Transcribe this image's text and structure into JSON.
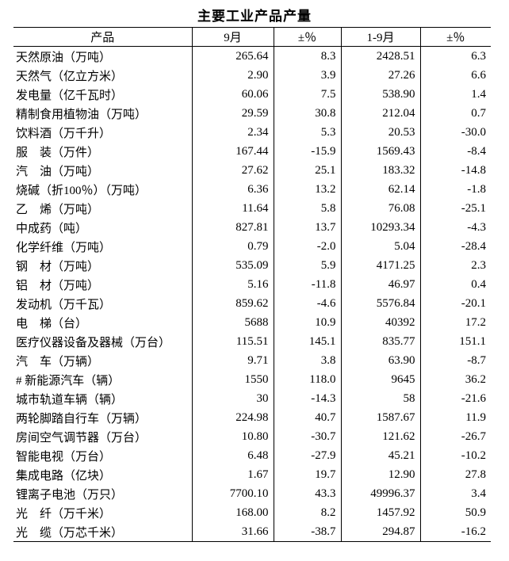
{
  "page": {
    "title": "主要工业产品产量"
  },
  "colors": {
    "text": "#000000",
    "border": "#000000",
    "background": "#ffffff"
  },
  "table": {
    "columns": {
      "product": "产品",
      "m9": "9月",
      "m9_pct": "±％",
      "ytd": "1-9月",
      "ytd_pct": "±％"
    },
    "rows": [
      {
        "product": "天然原油（万吨）",
        "m9": "265.64",
        "m9_pct": "8.3",
        "ytd": "2428.51",
        "ytd_pct": "6.3"
      },
      {
        "product": "天然气（亿立方米）",
        "m9": "2.90",
        "m9_pct": "3.9",
        "ytd": "27.26",
        "ytd_pct": "6.6"
      },
      {
        "product": "发电量（亿千瓦时）",
        "m9": "60.06",
        "m9_pct": "7.5",
        "ytd": "538.90",
        "ytd_pct": "1.4"
      },
      {
        "product": "精制食用植物油（万吨）",
        "m9": "29.59",
        "m9_pct": "30.8",
        "ytd": "212.04",
        "ytd_pct": "0.7"
      },
      {
        "product": "饮料酒（万千升）",
        "m9": "2.34",
        "m9_pct": "5.3",
        "ytd": "20.53",
        "ytd_pct": "-30.0"
      },
      {
        "product": "服　装（万件）",
        "m9": "167.44",
        "m9_pct": "-15.9",
        "ytd": "1569.43",
        "ytd_pct": "-8.4"
      },
      {
        "product": "汽　油（万吨）",
        "m9": "27.62",
        "m9_pct": "25.1",
        "ytd": "183.32",
        "ytd_pct": "-14.8"
      },
      {
        "product": "烧碱（折100％）（万吨）",
        "m9": "6.36",
        "m9_pct": "13.2",
        "ytd": "62.14",
        "ytd_pct": "-1.8"
      },
      {
        "product": "乙　烯（万吨）",
        "m9": "11.64",
        "m9_pct": "5.8",
        "ytd": "76.08",
        "ytd_pct": "-25.1"
      },
      {
        "product": "中成药（吨）",
        "m9": "827.81",
        "m9_pct": "13.7",
        "ytd": "10293.34",
        "ytd_pct": "-4.3"
      },
      {
        "product": "化学纤维（万吨）",
        "m9": "0.79",
        "m9_pct": "-2.0",
        "ytd": "5.04",
        "ytd_pct": "-28.4"
      },
      {
        "product": "钢　材（万吨）",
        "m9": "535.09",
        "m9_pct": "5.9",
        "ytd": "4171.25",
        "ytd_pct": "2.3"
      },
      {
        "product": "铝　材（万吨）",
        "m9": "5.16",
        "m9_pct": "-11.8",
        "ytd": "46.97",
        "ytd_pct": "0.4"
      },
      {
        "product": "发动机（万千瓦）",
        "m9": "859.62",
        "m9_pct": "-4.6",
        "ytd": "5576.84",
        "ytd_pct": "-20.1"
      },
      {
        "product": "电　梯（台）",
        "m9": "5688",
        "m9_pct": "10.9",
        "ytd": "40392",
        "ytd_pct": "17.2"
      },
      {
        "product": "医疗仪器设备及器械（万台）",
        "m9": "115.51",
        "m9_pct": "145.1",
        "ytd": "835.77",
        "ytd_pct": "151.1"
      },
      {
        "product": "汽　车（万辆）",
        "m9": "9.71",
        "m9_pct": "3.8",
        "ytd": "63.90",
        "ytd_pct": "-8.7"
      },
      {
        "product": "# 新能源汽车（辆）",
        "m9": "1550",
        "m9_pct": "118.0",
        "ytd": "9645",
        "ytd_pct": "36.2"
      },
      {
        "product": "城市轨道车辆（辆）",
        "m9": "30",
        "m9_pct": "-14.3",
        "ytd": "58",
        "ytd_pct": "-21.6"
      },
      {
        "product": "两轮脚踏自行车（万辆）",
        "m9": "224.98",
        "m9_pct": "40.7",
        "ytd": "1587.67",
        "ytd_pct": "11.9"
      },
      {
        "product": "房间空气调节器（万台）",
        "m9": "10.80",
        "m9_pct": "-30.7",
        "ytd": "121.62",
        "ytd_pct": "-26.7"
      },
      {
        "product": "智能电视（万台）",
        "m9": "6.48",
        "m9_pct": "-27.9",
        "ytd": "45.21",
        "ytd_pct": "-10.2"
      },
      {
        "product": "集成电路（亿块）",
        "m9": "1.67",
        "m9_pct": "19.7",
        "ytd": "12.90",
        "ytd_pct": "27.8"
      },
      {
        "product": "锂离子电池（万只）",
        "m9": "7700.10",
        "m9_pct": "43.3",
        "ytd": "49996.37",
        "ytd_pct": "3.4"
      },
      {
        "product": "光　纤（万千米）",
        "m9": "168.00",
        "m9_pct": "8.2",
        "ytd": "1457.92",
        "ytd_pct": "50.9"
      },
      {
        "product": "光　缆（万芯千米）",
        "m9": "31.66",
        "m9_pct": "-38.7",
        "ytd": "294.87",
        "ytd_pct": "-16.2"
      }
    ]
  }
}
